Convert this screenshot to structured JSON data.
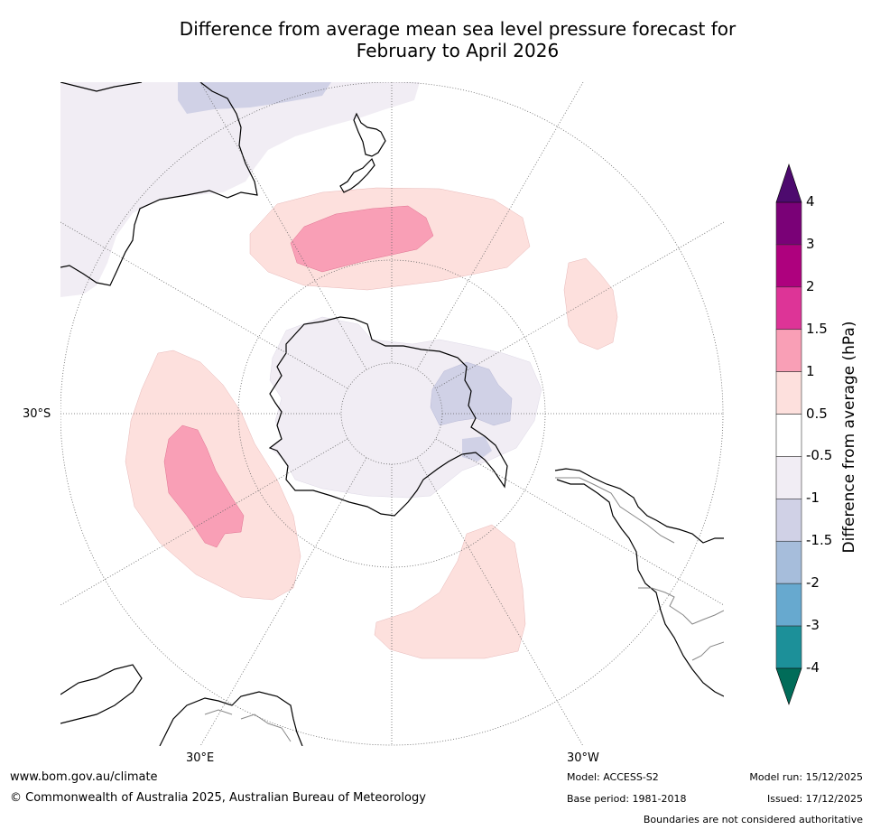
{
  "title": {
    "line1": "Difference from average mean sea level pressure forecast for",
    "line2": "February to April 2026"
  },
  "axes": {
    "lat_label": "30°S",
    "lon_label_left": "30°E",
    "lon_label_right": "30°W"
  },
  "map": {
    "projection": "south-polar-stereographic",
    "anomaly_regions": [
      {
        "region": "Tasman Sea / south of New Zealand",
        "category": "0.5 to 1"
      },
      {
        "region": "south of New Zealand core",
        "category": "1 to 1.5"
      },
      {
        "region": "southern Indian Ocean",
        "category": "0.5 to 1"
      },
      {
        "region": "southern Indian Ocean core",
        "category": "1 to 1.5"
      },
      {
        "region": "South Atlantic",
        "category": "0.5 to 1"
      },
      {
        "region": "south-east Pacific",
        "category": "0.5 to 1"
      },
      {
        "region": "Antarctica and surrounds",
        "category": "-1 to -0.5"
      },
      {
        "region": "Amundsen/Bellingshausen Sea",
        "category": "-1.5 to -1"
      },
      {
        "region": "north of Australia",
        "category": "-1.5 to -1"
      }
    ]
  },
  "legend": {
    "title": "Difference from average (hPa)",
    "tick_labels": [
      "4",
      "3",
      "2",
      "1.5",
      "1",
      "0.5",
      "-0.5",
      "-1",
      "-1.5",
      "-2",
      "-3",
      "-4"
    ],
    "bins": [
      {
        "range": "3 to 4",
        "color": "#7a0177"
      },
      {
        "range": "2 to 3",
        "color": "#ae017e"
      },
      {
        "range": "1.5 to 2",
        "color": "#dd3497"
      },
      {
        "range": "1 to 1.5",
        "color": "#f99fb6"
      },
      {
        "range": "0.5 to 1",
        "color": "#fde0dd"
      },
      {
        "range": "-0.5 to 0.5",
        "color": "#ffffff"
      },
      {
        "range": "-1 to -0.5",
        "color": "#f1edf4"
      },
      {
        "range": "-1.5 to -1",
        "color": "#d0d1e6"
      },
      {
        "range": "-2 to -1.5",
        "color": "#a6bddb"
      },
      {
        "range": "-3 to -2",
        "color": "#67a9cf"
      },
      {
        "range": "-4 to -3",
        "color": "#1c9099"
      }
    ],
    "over_color": "#4d0a6e",
    "under_color": "#016c59"
  },
  "footer": {
    "website": "www.bom.gov.au/climate",
    "copyright": "© Commonwealth of Australia 2025, Australian Bureau of Meteorology",
    "model": "Model: ACCESS-S2",
    "base_period": "Base period: 1981-2018",
    "model_run": "Model run: 15/12/2025",
    "issued": "Issued: 17/12/2025",
    "disclaimer": "Boundaries are not considered authoritative"
  }
}
